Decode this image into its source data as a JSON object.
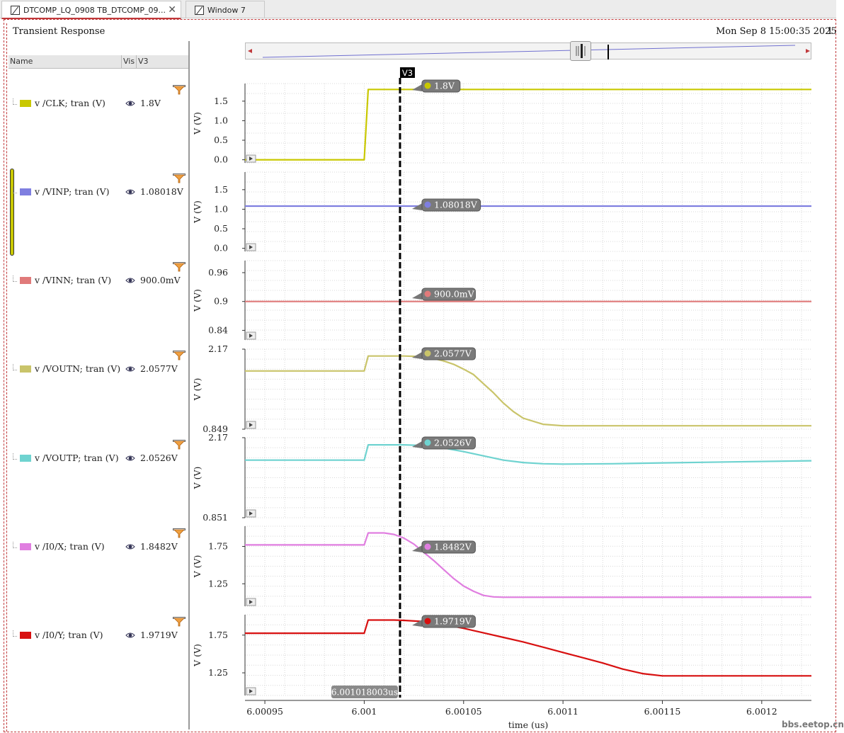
{
  "tabs": [
    {
      "label": "DTCOMP_LQ_0908 TB_DTCOMP_09...",
      "close": "✕"
    },
    {
      "label": "Window 7"
    }
  ],
  "window": {
    "title": "Transient Response",
    "date": "Mon Sep 8 15:00:35 2025",
    "edge": "1"
  },
  "legend": {
    "header": {
      "name": "Name",
      "vis": "Vis",
      "v3": "V3"
    }
  },
  "watermark": "bbs.eetop.cn",
  "chart_data": {
    "type": "line",
    "title": "Transient Response",
    "xlabel": "time (us)",
    "xlim": [
      6.00094,
      6.001225
    ],
    "xticks": [
      6.00095,
      6.001,
      6.00105,
      6.0011,
      6.00115,
      6.0012
    ],
    "xtick_labels": [
      "6.00095",
      "6.001",
      "6.00105",
      "6.0011",
      "6.00115",
      "6.0012"
    ],
    "cursor": {
      "name": "V3",
      "x": 6.001018003,
      "label": "6.001018003us"
    },
    "series": [
      {
        "name": "v /CLK; tran (V)",
        "color": "#c9c800",
        "cursor_value": "1.8V",
        "ylabel": "V (V)",
        "ylim": [
          -0.08,
          1.95
        ],
        "yticks": [
          0.0,
          0.5,
          1.0,
          1.5
        ],
        "ytick_labels": [
          "0.0",
          "0.5",
          "1.0",
          "1.5"
        ],
        "x": [
          6.00094,
          6.001,
          6.001002,
          6.001225
        ],
        "y": [
          0.0,
          0.0,
          1.8,
          1.8
        ]
      },
      {
        "name": "v /VINP; tran (V)",
        "color": "#7f7fe0",
        "cursor_value": "1.08018V",
        "ylabel": "V (V)",
        "ylim": [
          -0.08,
          1.95
        ],
        "yticks": [
          0.0,
          0.5,
          1.0,
          1.5
        ],
        "ytick_labels": [
          "0.0",
          "0.5",
          "1.0",
          "1.5"
        ],
        "x": [
          6.00094,
          6.001225
        ],
        "y": [
          1.08018,
          1.08018
        ]
      },
      {
        "name": "v /VINN; tran (V)",
        "color": "#e07a7a",
        "cursor_value": "900.0mV",
        "ylabel": "V (V)",
        "ylim": [
          0.82,
          0.985
        ],
        "yticks": [
          0.84,
          0.9,
          0.96
        ],
        "ytick_labels": [
          "0.84",
          "0.9",
          "0.96"
        ],
        "x": [
          6.00094,
          6.001225
        ],
        "y": [
          0.9,
          0.9
        ]
      },
      {
        "name": "v /VOUTN; tran (V)",
        "color": "#c9c46a",
        "cursor_value": "2.0577V",
        "ylabel": "V (V)",
        "ylim": [
          0.849,
          2.17
        ],
        "yticks": [
          0.849,
          2.17
        ],
        "ytick_labels": [
          "0.849",
          "2.17"
        ],
        "x": [
          6.00094,
          6.001,
          6.001002,
          6.00102,
          6.001025,
          6.00103,
          6.001035,
          6.00104,
          6.001045,
          6.00105,
          6.001055,
          6.00106,
          6.001065,
          6.00107,
          6.001075,
          6.00108,
          6.00109,
          6.0011,
          6.001225
        ],
        "y": [
          1.81,
          1.81,
          2.057,
          2.057,
          2.052,
          2.04,
          2.015,
          1.975,
          1.92,
          1.84,
          1.75,
          1.6,
          1.45,
          1.28,
          1.14,
          1.03,
          0.93,
          0.905,
          0.905
        ]
      },
      {
        "name": "v /VOUTP; tran (V)",
        "color": "#6fd3d0",
        "cursor_value": "2.0526V",
        "ylabel": "V (V)",
        "ylim": [
          0.851,
          2.17
        ],
        "yticks": [
          0.851,
          2.17
        ],
        "ytick_labels": [
          "0.851",
          "2.17"
        ],
        "x": [
          6.00094,
          6.001,
          6.001002,
          6.00102,
          6.00103,
          6.00104,
          6.00105,
          6.00106,
          6.00107,
          6.00108,
          6.00109,
          6.0011,
          6.001125,
          6.00115,
          6.001225
        ],
        "y": [
          1.8,
          1.8,
          2.052,
          2.052,
          2.04,
          2.0,
          1.94,
          1.87,
          1.8,
          1.76,
          1.74,
          1.735,
          1.74,
          1.755,
          1.79
        ]
      },
      {
        "name": "v /I0/X; tran (V)",
        "color": "#e07ee0",
        "cursor_value": "1.8482V",
        "ylabel": "V (V)",
        "ylim": [
          0.95,
          2.02
        ],
        "yticks": [
          1.25,
          1.75
        ],
        "ytick_labels": [
          "1.25",
          "1.75"
        ],
        "x": [
          6.00094,
          6.001,
          6.001002,
          6.00101,
          6.001015,
          6.00102,
          6.001025,
          6.00103,
          6.001035,
          6.00104,
          6.001045,
          6.00105,
          6.001055,
          6.00106,
          6.001065,
          6.00107,
          6.00108,
          6.001225
        ],
        "y": [
          1.77,
          1.77,
          1.93,
          1.93,
          1.91,
          1.86,
          1.78,
          1.67,
          1.56,
          1.44,
          1.32,
          1.22,
          1.15,
          1.095,
          1.075,
          1.07,
          1.07,
          1.07
        ]
      },
      {
        "name": "v /I0/Y; tran (V)",
        "color": "#d81010",
        "cursor_value": "1.9719V",
        "ylabel": "V (V)",
        "ylim": [
          0.95,
          2.02
        ],
        "yticks": [
          1.25,
          1.75
        ],
        "ytick_labels": [
          "1.25",
          "1.75"
        ],
        "x": [
          6.00094,
          6.001,
          6.001002,
          6.001015,
          6.00102,
          6.00103,
          6.00104,
          6.00105,
          6.00106,
          6.00107,
          6.00108,
          6.00109,
          6.0011,
          6.00111,
          6.00112,
          6.00113,
          6.00114,
          6.00115,
          6.001225
        ],
        "y": [
          1.775,
          1.775,
          1.95,
          1.95,
          1.945,
          1.93,
          1.89,
          1.84,
          1.78,
          1.72,
          1.66,
          1.59,
          1.52,
          1.45,
          1.38,
          1.3,
          1.24,
          1.21,
          1.21
        ]
      }
    ]
  }
}
